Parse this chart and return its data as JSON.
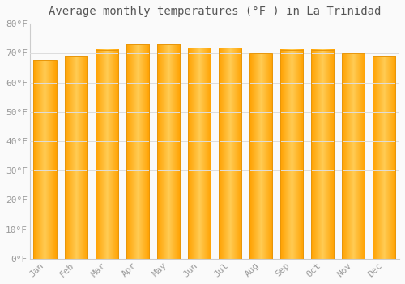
{
  "title": "Average monthly temperatures (°F ) in La Trinidad",
  "months": [
    "Jan",
    "Feb",
    "Mar",
    "Apr",
    "May",
    "Jun",
    "Jul",
    "Aug",
    "Sep",
    "Oct",
    "Nov",
    "Dec"
  ],
  "values": [
    67.5,
    69.0,
    71.0,
    73.0,
    73.0,
    71.5,
    71.5,
    70.0,
    71.0,
    71.0,
    70.0,
    69.0
  ],
  "ylim": [
    0,
    80
  ],
  "yticks": [
    0,
    10,
    20,
    30,
    40,
    50,
    60,
    70,
    80
  ],
  "ytick_labels": [
    "0°F",
    "10°F",
    "20°F",
    "30°F",
    "40°F",
    "50°F",
    "60°F",
    "70°F",
    "80°F"
  ],
  "bar_color_left": "#FFB300",
  "bar_color_center": "#FFCC44",
  "bar_color_right": "#FFA000",
  "bar_edge_color": "#E8960A",
  "background_color": "#FAFAFA",
  "grid_color": "#DDDDDD",
  "title_fontsize": 10,
  "tick_fontsize": 8,
  "title_color": "#555555",
  "tick_color": "#999999",
  "bar_width": 0.75
}
